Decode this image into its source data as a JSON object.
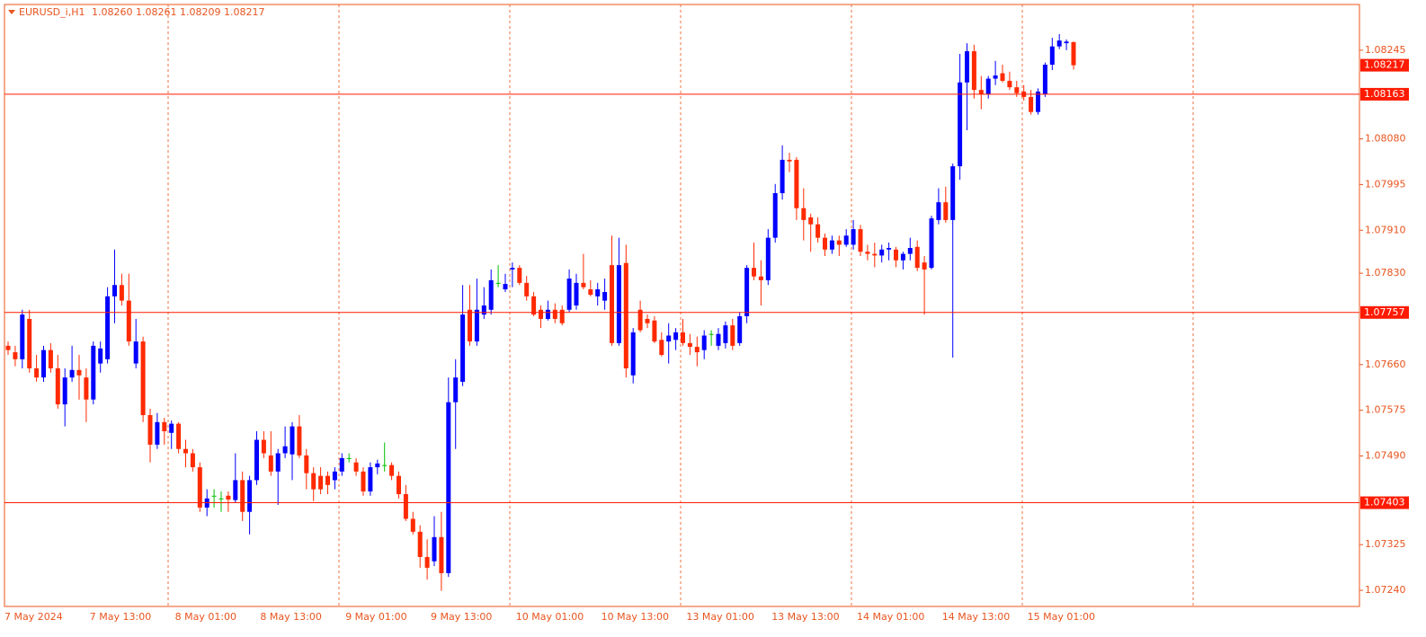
{
  "chart_data": {
    "type": "candlestick",
    "title": "EURUSD_i,H1",
    "subtitle": "1.08260 1.08261 1.08209 1.08217",
    "up_color": "#0000ff",
    "down_color": "#ff2a00",
    "doji_color": "#00c000",
    "level_color": "#ff1a00",
    "ylim": [
      1.0721,
      1.0833
    ],
    "yticks": [
      1.08245,
      {
        "value": 1.0808,
        "label": "1.08080"
      },
      1.07995,
      {
        "value": 1.0791,
        "label": "1.07910"
      },
      {
        "value": 1.0783,
        "label": "1.07830"
      },
      {
        "value": 1.0766,
        "label": "1.07660"
      },
      1.07575,
      {
        "value": 1.0749,
        "label": "1.07490"
      },
      1.07325,
      {
        "value": 1.0724,
        "label": "1.07240"
      }
    ],
    "levels": [
      1.08163,
      1.07757,
      1.07403
    ],
    "last_price": 1.08217,
    "categories": [
      "7 May 2024",
      null,
      null,
      null,
      null,
      null,
      null,
      null,
      null,
      null,
      null,
      null,
      "7 May 13:00",
      null,
      null,
      null,
      null,
      null,
      null,
      null,
      null,
      null,
      null,
      null,
      "8 May 01:00",
      null,
      null,
      null,
      null,
      null,
      null,
      null,
      null,
      null,
      null,
      null,
      "8 May 13:00",
      null,
      null,
      null,
      null,
      null,
      null,
      null,
      null,
      null,
      null,
      null,
      "9 May 01:00",
      null,
      null,
      null,
      null,
      null,
      null,
      null,
      null,
      null,
      null,
      null,
      "9 May 13:00",
      null,
      null,
      null,
      null,
      null,
      null,
      null,
      null,
      null,
      null,
      null,
      "10 May 01:00",
      null,
      null,
      null,
      null,
      null,
      null,
      null,
      null,
      null,
      null,
      null,
      "10 May 13:00",
      null,
      null,
      null,
      null,
      null,
      null,
      null,
      null,
      null,
      null,
      null,
      "13 May 01:00",
      null,
      null,
      null,
      null,
      null,
      null,
      null,
      null,
      null,
      null,
      null,
      "13 May 13:00",
      null,
      null,
      null,
      null,
      null,
      null,
      null,
      null,
      null,
      null,
      null,
      "14 May 01:00",
      null,
      null,
      null,
      null,
      null,
      null,
      null,
      null,
      null,
      null,
      null,
      "14 May 13:00",
      null,
      null,
      null,
      null,
      null,
      null,
      null,
      null,
      null,
      null,
      null,
      "15 May 01:00",
      null,
      null,
      null,
      null,
      null,
      null
    ],
    "open": [
      1.07695,
      1.07683,
      1.0767,
      1.07745,
      1.07653,
      1.07636,
      1.07687,
      1.07653,
      1.07586,
      1.07636,
      1.0765,
      1.07636,
      1.07595,
      1.07662,
      1.0767,
      1.07787,
      1.07808,
      1.07779,
      1.07662,
      1.07703,
      1.07566,
      1.07511,
      1.07553,
      1.07533,
      1.0755,
      1.07503,
      1.07495,
      1.07469,
      1.07394,
      1.07416,
      1.07411,
      1.07416,
      1.07408,
      1.07445,
      1.07386,
      1.07445,
      1.0752,
      1.07491,
      1.07461,
      1.07495,
      1.07493,
      1.07545,
      1.07491,
      1.07458,
      1.07453,
      1.07453,
      1.07445,
      1.07461,
      1.07486,
      1.07478,
      1.07461,
      1.07424,
      1.07469,
      1.07473,
      1.07473,
      1.07453,
      1.07419,
      1.07373,
      1.07349,
      1.07302,
      1.07294,
      1.07339,
      1.07272,
      1.0759,
      1.07628,
      1.07762,
      1.07703,
      1.07753,
      1.07762,
      1.07812,
      1.078,
      1.07837,
      1.0784,
      1.07812,
      1.07787,
      1.07762,
      1.07745,
      1.07762,
      1.07762,
      1.07762,
      1.0777,
      1.07812,
      1.078,
      1.07787,
      1.07779,
      1.07845,
      1.077,
      1.07849,
      1.0764,
      1.07762,
      1.07745,
      1.07742,
      1.07706,
      1.07703,
      1.07706,
      1.0772,
      1.077,
      1.07693,
      1.07687,
      1.07717,
      1.07695,
      1.077,
      1.07733,
      1.077,
      1.0775,
      1.0784,
      1.07824,
      1.07817,
      1.07896,
      1.07979,
      1.08041,
      1.08041,
      1.07951,
      1.07934,
      1.07921,
      1.07896,
      1.07874,
      1.07891,
      1.07883,
      1.07883,
      1.07912,
      1.0787,
      1.07866,
      1.07863,
      1.07874,
      1.07874,
      1.07854,
      1.07866,
      1.07879,
      1.0785,
      1.0784,
      1.07929,
      1.07962,
      1.07929,
      1.08029,
      1.08185,
      1.08243,
      1.08171,
      1.08163,
      1.08192,
      1.08202,
      1.08188,
      1.08176,
      1.08168,
      1.08158,
      1.0813,
      1.08163,
      1.08218,
      1.08252,
      1.08258,
      1.0826
    ],
    "high": [
      1.07703,
      1.07695,
      1.07762,
      1.07762,
      1.07678,
      1.07695,
      1.077,
      1.07678,
      1.07653,
      1.07695,
      1.07678,
      1.07653,
      1.07703,
      1.07703,
      1.07804,
      1.07874,
      1.07829,
      1.07829,
      1.07745,
      1.07712,
      1.07578,
      1.0757,
      1.07561,
      1.07556,
      1.07553,
      1.0752,
      1.07503,
      1.07478,
      1.07428,
      1.07428,
      1.07424,
      1.07424,
      1.07495,
      1.07461,
      1.07453,
      1.07536,
      1.07536,
      1.07536,
      1.07503,
      1.07545,
      1.07553,
      1.07566,
      1.07503,
      1.07469,
      1.07469,
      1.07461,
      1.07469,
      1.07495,
      1.07495,
      1.07486,
      1.07469,
      1.07478,
      1.07483,
      1.07515,
      1.07478,
      1.07461,
      1.07436,
      1.07386,
      1.07361,
      1.07335,
      1.07378,
      1.07386,
      1.07636,
      1.0767,
      1.07808,
      1.07808,
      1.0782,
      1.07804,
      1.07837,
      1.07845,
      1.07829,
      1.0785,
      1.07845,
      1.07825,
      1.07795,
      1.0777,
      1.07779,
      1.07774,
      1.0777,
      1.07837,
      1.07829,
      1.07866,
      1.07817,
      1.07812,
      1.0782,
      1.079,
      1.07896,
      1.07883,
      1.07728,
      1.07779,
      1.07753,
      1.0775,
      1.0772,
      1.07737,
      1.07728,
      1.07745,
      1.07717,
      1.07712,
      1.07724,
      1.07724,
      1.07728,
      1.0774,
      1.07745,
      1.07758,
      1.07845,
      1.07887,
      1.07854,
      1.07912,
      1.07996,
      1.08068,
      1.08054,
      1.08046,
      1.07988,
      1.07941,
      1.07934,
      1.07904,
      1.079,
      1.079,
      1.07912,
      1.07929,
      1.0792,
      1.07883,
      1.07887,
      1.07883,
      1.07887,
      1.07879,
      1.0787,
      1.07896,
      1.07891,
      1.07862,
      1.07937,
      1.07988,
      1.07991,
      1.08034,
      1.08238,
      1.08258,
      1.08255,
      1.08197,
      1.08197,
      1.08225,
      1.08218,
      1.08205,
      1.08188,
      1.0818,
      1.08171,
      1.08174,
      1.08222,
      1.08268,
      1.08275,
      1.08265,
      1.08261
    ],
    "low": [
      1.07678,
      1.07657,
      1.07653,
      1.07645,
      1.07628,
      1.07628,
      1.07645,
      1.07578,
      1.07545,
      1.07628,
      1.07595,
      1.07553,
      1.07586,
      1.07645,
      1.07662,
      1.07737,
      1.0777,
      1.07695,
      1.07653,
      1.07553,
      1.07478,
      1.07503,
      1.07511,
      1.07503,
      1.07495,
      1.07469,
      1.07461,
      1.07386,
      1.07378,
      1.07394,
      1.07386,
      1.07386,
      1.07403,
      1.07369,
      1.07344,
      1.07436,
      1.07486,
      1.07453,
      1.07399,
      1.07486,
      1.07445,
      1.07486,
      1.07428,
      1.07406,
      1.07419,
      1.07419,
      1.07428,
      1.07453,
      1.07478,
      1.07453,
      1.07416,
      1.07416,
      1.07456,
      1.07461,
      1.07445,
      1.07411,
      1.07369,
      1.07344,
      1.07282,
      1.0726,
      1.07285,
      1.07239,
      1.07265,
      1.07503,
      1.0762,
      1.07695,
      1.07695,
      1.07745,
      1.07753,
      1.07804,
      1.07795,
      1.07804,
      1.07808,
      1.07779,
      1.0775,
      1.07728,
      1.07742,
      1.07737,
      1.07733,
      1.07758,
      1.07762,
      1.078,
      1.07787,
      1.0777,
      1.07762,
      1.07695,
      1.07695,
      1.07636,
      1.07625,
      1.0772,
      1.07728,
      1.077,
      1.07675,
      1.07662,
      1.07687,
      1.07695,
      1.07678,
      1.07657,
      1.0767,
      1.07695,
      1.07687,
      1.0769,
      1.07687,
      1.07695,
      1.07737,
      1.07817,
      1.0777,
      1.07808,
      1.07887,
      1.07967,
      1.08018,
      1.07929,
      1.07891,
      1.0787,
      1.07887,
      1.07862,
      1.07866,
      1.07862,
      1.07879,
      1.07874,
      1.07862,
      1.07854,
      1.07841,
      1.0785,
      1.07854,
      1.07841,
      1.07837,
      1.07854,
      1.07834,
      1.07753,
      1.07837,
      1.07921,
      1.07924,
      1.07673,
      1.08004,
      1.08096,
      1.08155,
      1.08135,
      1.08155,
      1.0818,
      1.08185,
      1.08171,
      1.08158,
      1.08151,
      1.08125,
      1.08125,
      1.08158,
      1.08208,
      1.08247,
      1.08245,
      1.08209
    ],
    "close": [
      1.07687,
      1.0767,
      1.07753,
      1.07653,
      1.07636,
      1.07687,
      1.07653,
      1.07586,
      1.07636,
      1.0765,
      1.0764,
      1.07595,
      1.07695,
      1.0769,
      1.07787,
      1.07808,
      1.07779,
      1.07703,
      1.07703,
      1.07566,
      1.07511,
      1.07553,
      1.07536,
      1.0755,
      1.07503,
      1.07495,
      1.07469,
      1.07394,
      1.07411,
      1.07416,
      1.07411,
      1.07409,
      1.07445,
      1.07386,
      1.07445,
      1.0752,
      1.07495,
      1.07461,
      1.07495,
      1.07508,
      1.07545,
      1.07491,
      1.07458,
      1.07428,
      1.07428,
      1.07436,
      1.07461,
      1.07486,
      1.07486,
      1.07461,
      1.07424,
      1.07469,
      1.07476,
      1.07473,
      1.07453,
      1.07419,
      1.07373,
      1.07349,
      1.07302,
      1.07282,
      1.07339,
      1.07272,
      1.0759,
      1.07636,
      1.07753,
      1.07703,
      1.07762,
      1.0777,
      1.07817,
      1.07812,
      1.0781,
      1.0784,
      1.07812,
      1.07787,
      1.07753,
      1.07745,
      1.07762,
      1.07745,
      1.07737,
      1.0782,
      1.07812,
      1.07804,
      1.0779,
      1.078,
      1.07795,
      1.077,
      1.07845,
      1.07653,
      1.0772,
      1.07724,
      1.07737,
      1.07703,
      1.07678,
      1.07714,
      1.0772,
      1.077,
      1.07693,
      1.07683,
      1.07714,
      1.07717,
      1.07717,
      1.07733,
      1.07695,
      1.0775,
      1.0784,
      1.07824,
      1.07817,
      1.07896,
      1.07979,
      1.08041,
      1.08038,
      1.07951,
      1.07929,
      1.07921,
      1.07896,
      1.07874,
      1.07891,
      1.07883,
      1.079,
      1.07912,
      1.0787,
      1.07866,
      1.07863,
      1.07874,
      1.07877,
      1.07854,
      1.07866,
      1.07877,
      1.0784,
      1.07837,
      1.07932,
      1.07962,
      1.07929,
      1.08029,
      1.08185,
      1.08243,
      1.08171,
      1.08163,
      1.08192,
      1.08198,
      1.08188,
      1.08176,
      1.08165,
      1.08158,
      1.0813,
      1.08168,
      1.08218,
      1.08252,
      1.08263,
      1.08261,
      1.08217
    ]
  }
}
